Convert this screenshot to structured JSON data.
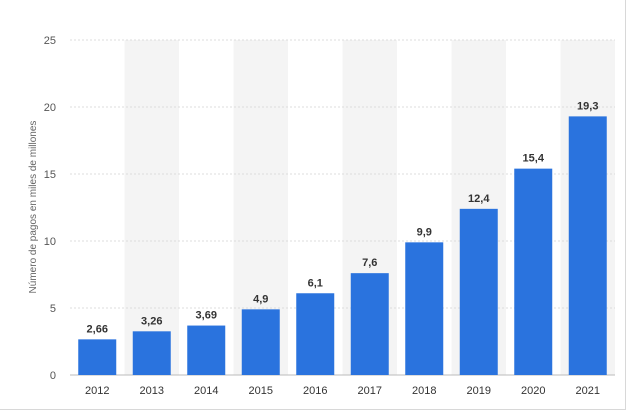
{
  "chart_data": {
    "type": "bar",
    "title": "",
    "xlabel": "",
    "ylabel": "Número de pagos en miles de millones",
    "ylim": [
      0,
      25
    ],
    "yticks": [
      0,
      5,
      10,
      15,
      20,
      25
    ],
    "grid": true,
    "categories": [
      "2012",
      "2013",
      "2014",
      "2015",
      "2016",
      "2017",
      "2018",
      "2019",
      "2020",
      "2021"
    ],
    "values": [
      2.66,
      3.26,
      3.69,
      4.9,
      6.1,
      7.6,
      9.9,
      12.4,
      15.4,
      19.3
    ],
    "value_labels": [
      "2,66",
      "3,26",
      "3,69",
      "4,9",
      "6,1",
      "7,6",
      "9,9",
      "12,4",
      "15,4",
      "19,3"
    ],
    "bar_color": "#2a73de",
    "band_color": "#f4f4f4",
    "grid_color": "#dddddd"
  }
}
